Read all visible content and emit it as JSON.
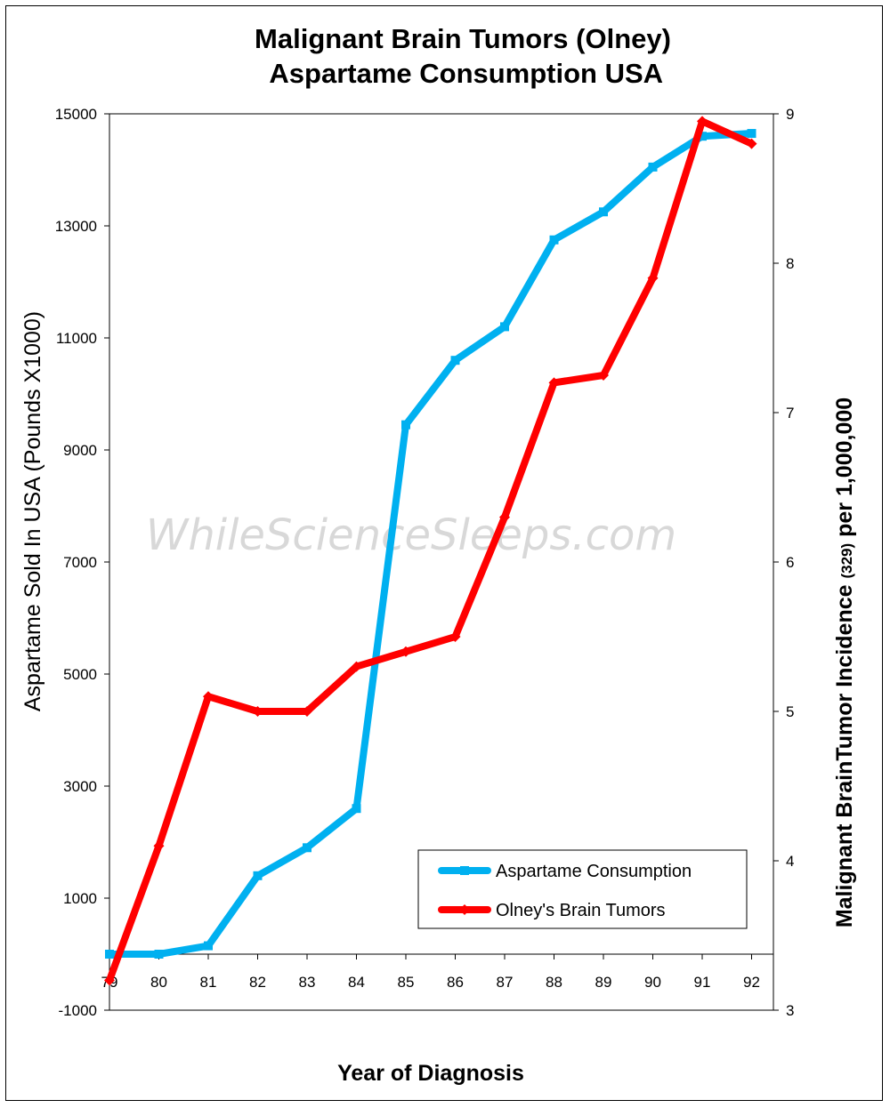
{
  "chart_data": {
    "type": "line",
    "title": [
      "Malignant Brain Tumors (Olney)",
      " Aspartame Consumption USA"
    ],
    "xlabel": "Year of Diagnosis",
    "ylabel": "Aspartame Sold In USA  (Pounds X1000)",
    "y2label": {
      "main": "Malignant BrainTumor Incidence ",
      "small": "(329)",
      "rest": " per 1,000,000"
    },
    "categories": [
      "79",
      "80",
      "81",
      "82",
      "83",
      "84",
      "85",
      "86",
      "87",
      "88",
      "89",
      "90",
      "91",
      "92"
    ],
    "ylim": [
      -1000,
      15000
    ],
    "yticks": [
      "-1000",
      "1000",
      "3000",
      "5000",
      "7000",
      "9000",
      "11000",
      "13000",
      "15000"
    ],
    "y2lim": [
      3,
      9
    ],
    "y2ticks": [
      "3",
      "4",
      "5",
      "6",
      "7",
      "8",
      "9"
    ],
    "x_axis_crosses_at": 0,
    "series": [
      {
        "name": "Aspartame Consumption",
        "axis": "left",
        "color": "#00b0f0",
        "marker": "square",
        "values": [
          0,
          0,
          150,
          1400,
          1900,
          2600,
          9450,
          10600,
          11200,
          12750,
          13250,
          14050,
          14600,
          14650
        ]
      },
      {
        "name": "Olney's Brain Tumors",
        "axis": "right",
        "color": "#ff0000",
        "marker": "diamond",
        "values": [
          3.2,
          4.1,
          5.1,
          5.0,
          5.0,
          5.3,
          5.4,
          5.5,
          6.3,
          7.2,
          7.25,
          7.9,
          8.95,
          8.8
        ]
      }
    ],
    "legend_position": "bottom-right",
    "grid": false,
    "watermark": "WhileScienceSleeps.com"
  }
}
